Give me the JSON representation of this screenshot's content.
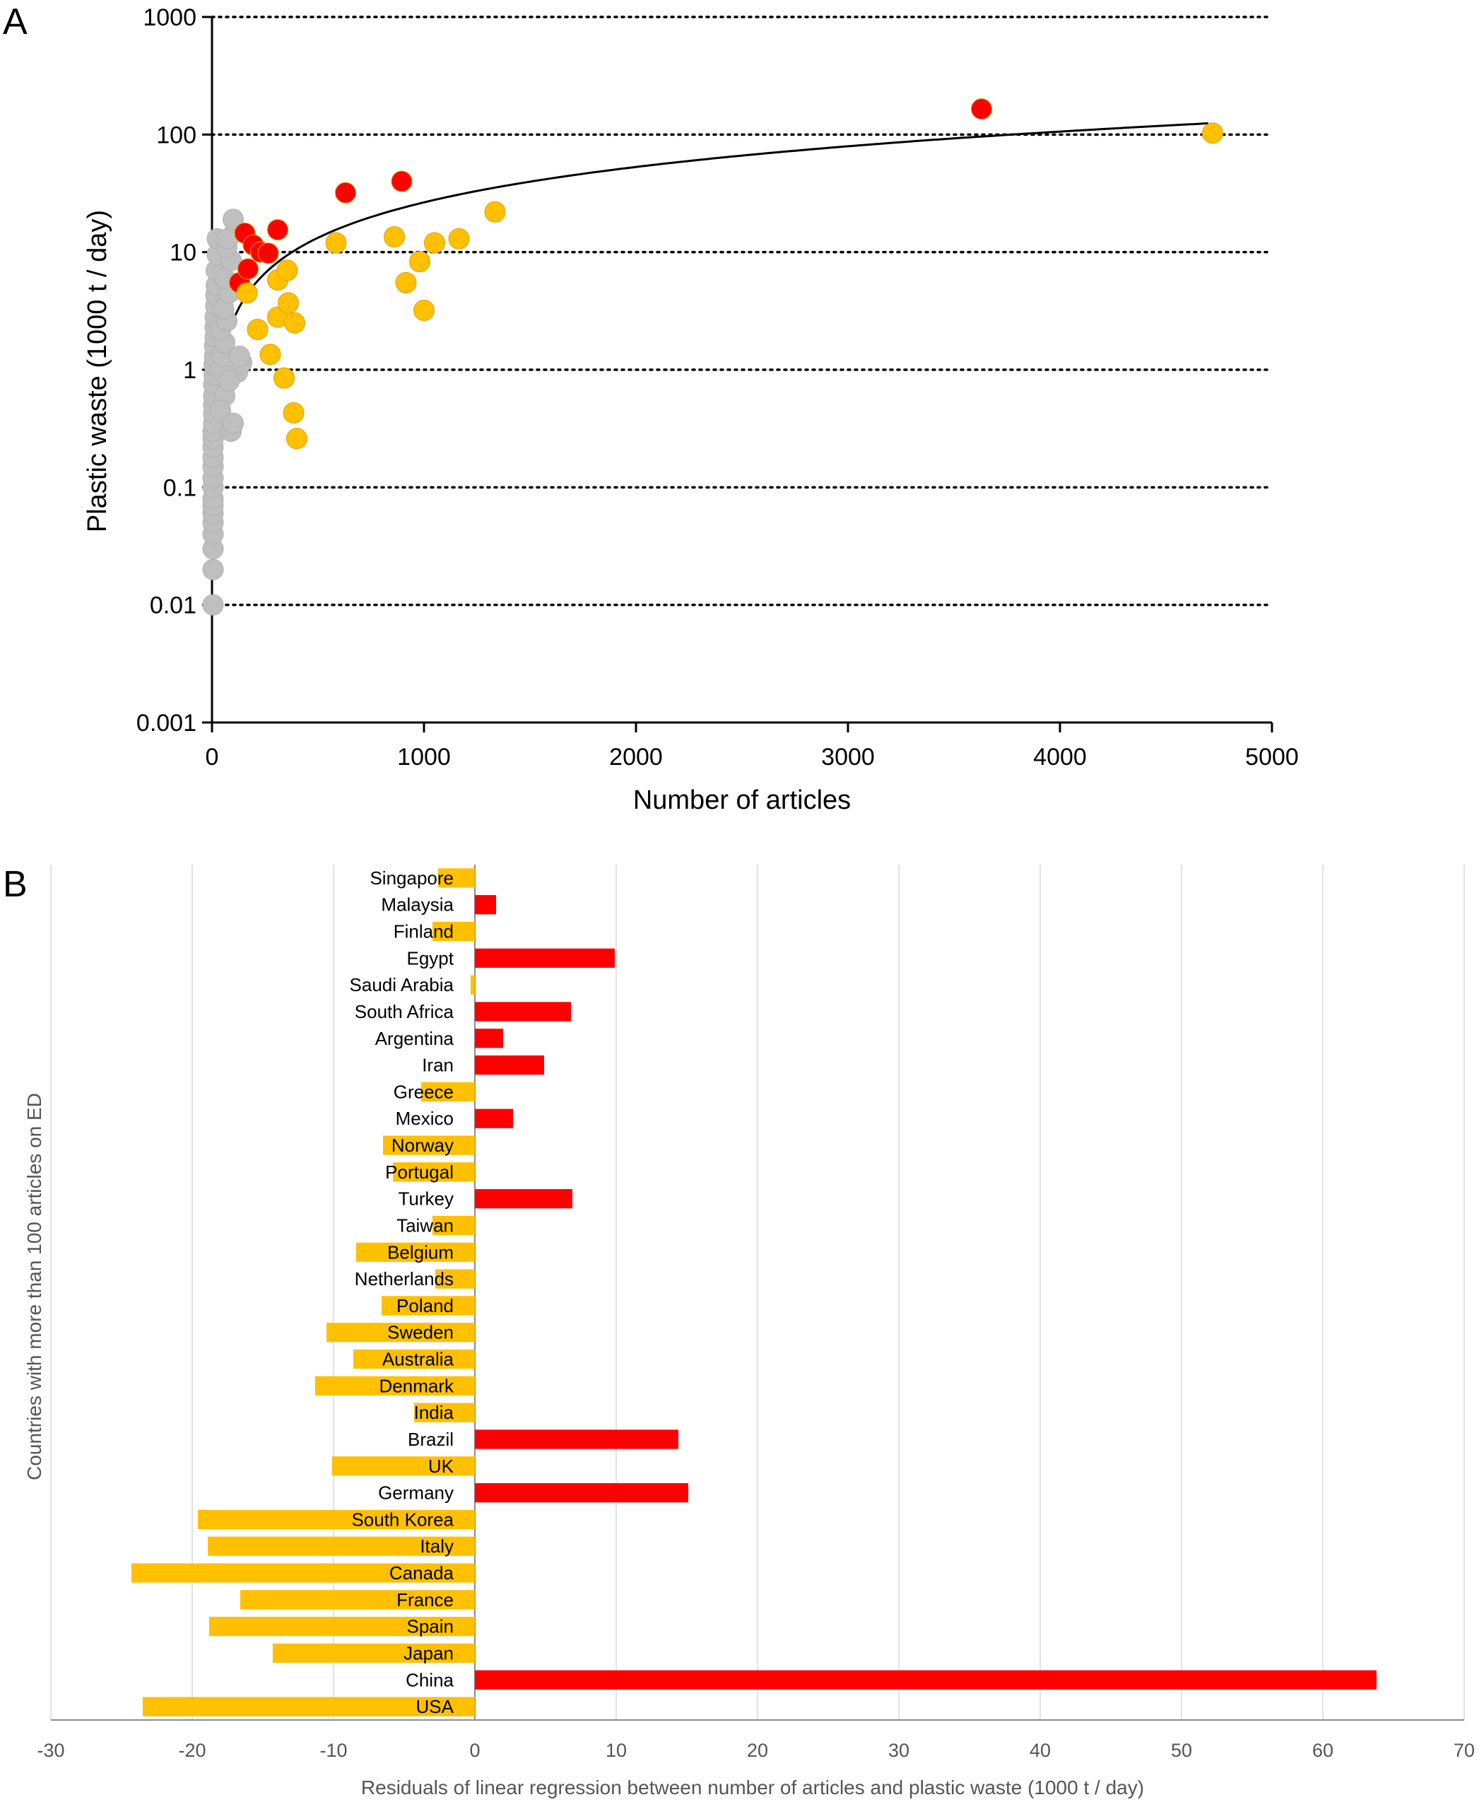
{
  "panels": {
    "a": "A",
    "b": "B"
  },
  "colors": {
    "red": "#ff0000",
    "yellow": "#ffc000",
    "gray": "#bfbfbf",
    "fit_line": "#000000",
    "grid_b": "#d9d9d9"
  },
  "chart_data": [
    {
      "type": "scatter",
      "panel": "A",
      "title": "",
      "xlabel": "Number of articles",
      "ylabel": "Plastic waste (1000 t / day)",
      "xlim": [
        0,
        5000
      ],
      "ylim": [
        0.001,
        1000
      ],
      "yscale": "log",
      "xticks": [
        "0",
        "1000",
        "2000",
        "3000",
        "4000",
        "5000"
      ],
      "yticks": [
        "0.001",
        "0.01",
        "0.1",
        "1",
        "10",
        "100",
        "1000"
      ],
      "grid": "horizontal dotted",
      "series": [
        {
          "name": "gray",
          "color": "#bfbfbf",
          "points": [
            [
              5,
              0.01
            ],
            [
              5,
              0.02
            ],
            [
              5,
              0.03
            ],
            [
              5,
              0.04
            ],
            [
              5,
              0.05
            ],
            [
              5,
              0.06
            ],
            [
              5,
              0.07
            ],
            [
              5,
              0.08
            ],
            [
              5,
              0.1
            ],
            [
              5,
              0.12
            ],
            [
              5,
              0.15
            ],
            [
              5,
              0.18
            ],
            [
              5,
              0.22
            ],
            [
              5,
              0.26
            ],
            [
              5,
              0.3
            ],
            [
              8,
              0.35
            ],
            [
              8,
              0.42
            ],
            [
              8,
              0.5
            ],
            [
              8,
              0.6
            ],
            [
              8,
              0.75
            ],
            [
              10,
              0.9
            ],
            [
              10,
              1.1
            ],
            [
              12,
              1.3
            ],
            [
              12,
              1.6
            ],
            [
              15,
              1.9
            ],
            [
              15,
              2.3
            ],
            [
              15,
              2.8
            ],
            [
              18,
              3.5
            ],
            [
              18,
              4.3
            ],
            [
              20,
              5.2
            ],
            [
              20,
              7
            ],
            [
              25,
              9.5
            ],
            [
              25,
              13
            ],
            [
              40,
              1.0
            ],
            [
              50,
              1.3
            ],
            [
              60,
              1.7
            ],
            [
              40,
              2.2
            ],
            [
              70,
              2.6
            ],
            [
              55,
              3.3
            ],
            [
              80,
              4.5
            ],
            [
              60,
              6
            ],
            [
              90,
              8.5
            ],
            [
              70,
              11
            ],
            [
              110,
              15
            ],
            [
              100,
              19
            ],
            [
              75,
              13
            ],
            [
              90,
              0.3
            ],
            [
              120,
              0.95
            ],
            [
              140,
              1.15
            ],
            [
              130,
              1.3
            ],
            [
              60,
              0.6
            ],
            [
              80,
              0.8
            ],
            [
              40,
              0.45
            ],
            [
              100,
              0.35
            ]
          ]
        },
        {
          "name": "red",
          "color": "#ff0000",
          "points": [
            [
              130,
              5.5
            ],
            [
              155,
              14.5
            ],
            [
              170,
              7.2
            ],
            [
              195,
              11.5
            ],
            [
              230,
              10
            ],
            [
              265,
              9.8
            ],
            [
              310,
              15.5
            ],
            [
              630,
              32
            ],
            [
              895,
              40
            ],
            [
              3630,
              165
            ]
          ]
        },
        {
          "name": "yellow",
          "color": "#ffc000",
          "points": [
            [
              165,
              4.5
            ],
            [
              215,
              2.2
            ],
            [
              275,
              1.35
            ],
            [
              310,
              2.8
            ],
            [
              310,
              5.8
            ],
            [
              340,
              0.85
            ],
            [
              355,
              7
            ],
            [
              360,
              3.7
            ],
            [
              385,
              0.43
            ],
            [
              390,
              2.5
            ],
            [
              400,
              0.26
            ],
            [
              585,
              12
            ],
            [
              860,
              13.5
            ],
            [
              915,
              5.5
            ],
            [
              980,
              8.3
            ],
            [
              1000,
              3.2
            ],
            [
              1050,
              12
            ],
            [
              1165,
              13
            ],
            [
              1335,
              22
            ],
            [
              4720,
              103
            ]
          ]
        }
      ],
      "fit_line": {
        "type": "linear",
        "slope": 0.0265,
        "intercept": 0,
        "x_range": [
          60,
          4700
        ]
      }
    },
    {
      "type": "bar",
      "orientation": "horizontal",
      "panel": "B",
      "title": "",
      "xlabel": "Residuals of linear regression between number of articles and plastic waste (1000 t / day)",
      "ylabel": "Countries with more than 100 articles on ED",
      "xlim": [
        -30,
        70
      ],
      "xticks": [
        "-30",
        "-20",
        "-10",
        "0",
        "10",
        "20",
        "30",
        "40",
        "50",
        "60",
        "70"
      ],
      "grid": "vertical",
      "categories": [
        "Singapore",
        "Malaysia",
        "Finland",
        "Egypt",
        "Saudi Arabia",
        "South Africa",
        "Argentina",
        "Iran",
        "Greece",
        "Mexico",
        "Norway",
        "Portugal",
        "Turkey",
        "Taiwan",
        "Belgium",
        "Netherlands",
        "Poland",
        "Sweden",
        "Australia",
        "Denmark",
        "India",
        "Brazil",
        "UK",
        "Germany",
        "South Korea",
        "Italy",
        "Canada",
        "France",
        "Spain",
        "Japan",
        "China",
        "USA"
      ],
      "values": [
        -2.6,
        1.5,
        -3.0,
        9.9,
        -0.3,
        6.8,
        2.0,
        4.9,
        -3.8,
        2.7,
        -6.5,
        -5.8,
        6.9,
        -3.0,
        -8.4,
        -2.8,
        -6.6,
        -10.5,
        -8.6,
        -11.3,
        -4.3,
        14.4,
        -10.1,
        15.1,
        -19.6,
        -18.9,
        -24.3,
        -16.6,
        -18.8,
        -14.3,
        63.8,
        -23.5
      ]
    }
  ]
}
